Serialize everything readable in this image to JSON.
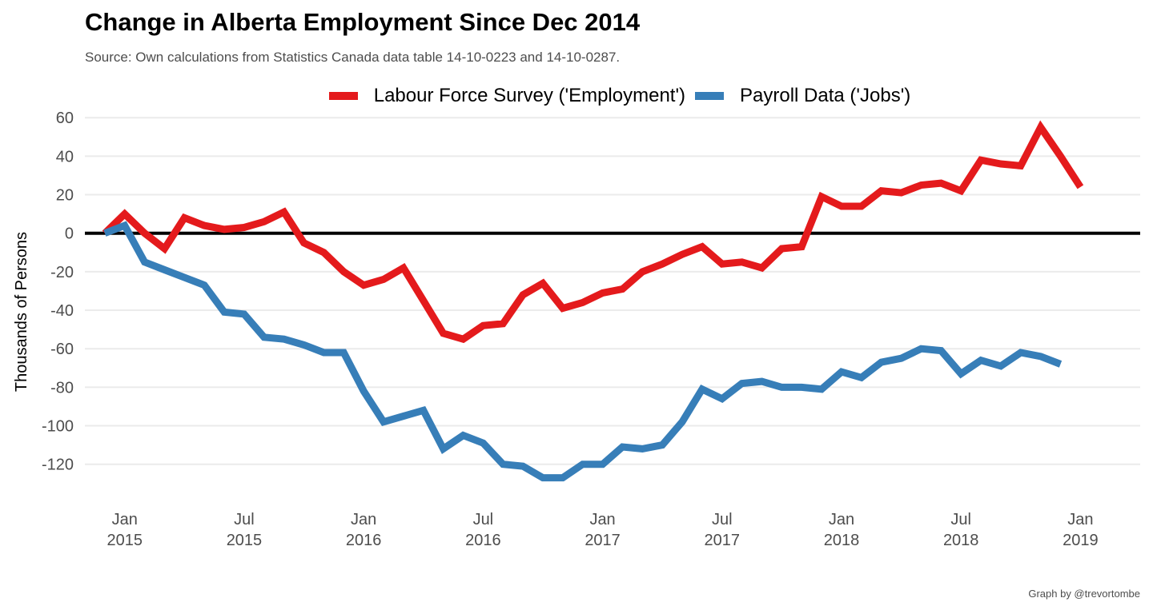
{
  "chart_data": {
    "type": "line",
    "title": "Change in Alberta Employment Since Dec 2014",
    "subtitle": "Source: Own calculations from Statistics Canada data table 14-10-0223 and 14-10-0287.",
    "caption": "Graph by @trevortombe",
    "xlabel": "",
    "ylabel": "Thousands of Persons",
    "ylim": [
      -133,
      63
    ],
    "yticks": [
      60,
      40,
      20,
      0,
      -20,
      -40,
      -60,
      -80,
      -100,
      -120
    ],
    "x_ticks": [
      {
        "date": "2015-01",
        "line1": "Jan",
        "line2": "2015"
      },
      {
        "date": "2015-07",
        "line1": "Jul",
        "line2": "2015"
      },
      {
        "date": "2016-01",
        "line1": "Jan",
        "line2": "2016"
      },
      {
        "date": "2016-07",
        "line1": "Jul",
        "line2": "2016"
      },
      {
        "date": "2017-01",
        "line1": "Jan",
        "line2": "2017"
      },
      {
        "date": "2017-07",
        "line1": "Jul",
        "line2": "2017"
      },
      {
        "date": "2018-01",
        "line1": "Jan",
        "line2": "2018"
      },
      {
        "date": "2018-07",
        "line1": "Jul",
        "line2": "2018"
      },
      {
        "date": "2019-01",
        "line1": "Jan",
        "line2": "2019"
      }
    ],
    "xlim": [
      "2014-11",
      "2019-04"
    ],
    "zero_line": true,
    "grid": "horizontal",
    "legend_position": "top",
    "series": [
      {
        "name": "Labour Force Survey ('Employment')",
        "color": "#e41a1c",
        "x": [
          "2014-12",
          "2015-01",
          "2015-02",
          "2015-03",
          "2015-04",
          "2015-05",
          "2015-06",
          "2015-07",
          "2015-08",
          "2015-09",
          "2015-10",
          "2015-11",
          "2015-12",
          "2016-01",
          "2016-02",
          "2016-03",
          "2016-04",
          "2016-05",
          "2016-06",
          "2016-07",
          "2016-08",
          "2016-09",
          "2016-10",
          "2016-11",
          "2016-12",
          "2017-01",
          "2017-02",
          "2017-03",
          "2017-04",
          "2017-05",
          "2017-06",
          "2017-07",
          "2017-08",
          "2017-09",
          "2017-10",
          "2017-11",
          "2017-12",
          "2018-01",
          "2018-02",
          "2018-03",
          "2018-04",
          "2018-05",
          "2018-06",
          "2018-07",
          "2018-08",
          "2018-09",
          "2018-10",
          "2018-11",
          "2018-12",
          "2019-01"
        ],
        "values": [
          0,
          10,
          0,
          -8,
          8,
          4,
          2,
          3,
          6,
          11,
          -5,
          -10,
          -20,
          -27,
          -24,
          -18,
          -35,
          -52,
          -55,
          -48,
          -47,
          -32,
          -26,
          -39,
          -36,
          -31,
          -29,
          -20,
          -16,
          -11,
          -7,
          -16,
          -15,
          -18,
          -8,
          -7,
          19,
          14,
          14,
          22,
          21,
          25,
          26,
          22,
          38,
          36,
          35,
          55,
          40,
          24
        ]
      },
      {
        "name": "Payroll Data ('Jobs')",
        "color": "#377eb8",
        "x": [
          "2014-12",
          "2015-01",
          "2015-02",
          "2015-03",
          "2015-04",
          "2015-05",
          "2015-06",
          "2015-07",
          "2015-08",
          "2015-09",
          "2015-10",
          "2015-11",
          "2015-12",
          "2016-01",
          "2016-02",
          "2016-03",
          "2016-04",
          "2016-05",
          "2016-06",
          "2016-07",
          "2016-08",
          "2016-09",
          "2016-10",
          "2016-11",
          "2016-12",
          "2017-01",
          "2017-02",
          "2017-03",
          "2017-04",
          "2017-05",
          "2017-06",
          "2017-07",
          "2017-08",
          "2017-09",
          "2017-10",
          "2017-11",
          "2017-12",
          "2018-01",
          "2018-02",
          "2018-03",
          "2018-04",
          "2018-05",
          "2018-06",
          "2018-07",
          "2018-08",
          "2018-09",
          "2018-10",
          "2018-11",
          "2018-12"
        ],
        "values": [
          0,
          4,
          -15,
          -19,
          -23,
          -27,
          -41,
          -42,
          -54,
          -55,
          -58,
          -62,
          -62,
          -82,
          -98,
          -95,
          -92,
          -112,
          -105,
          -109,
          -120,
          -121,
          -127,
          -127,
          -120,
          -120,
          -111,
          -112,
          -110,
          -98,
          -81,
          -86,
          -78,
          -77,
          -80,
          -80,
          -81,
          -72,
          -75,
          -67,
          -65,
          -60,
          -61,
          -73,
          -66,
          -69,
          -62,
          -64,
          -68
        ]
      }
    ]
  }
}
